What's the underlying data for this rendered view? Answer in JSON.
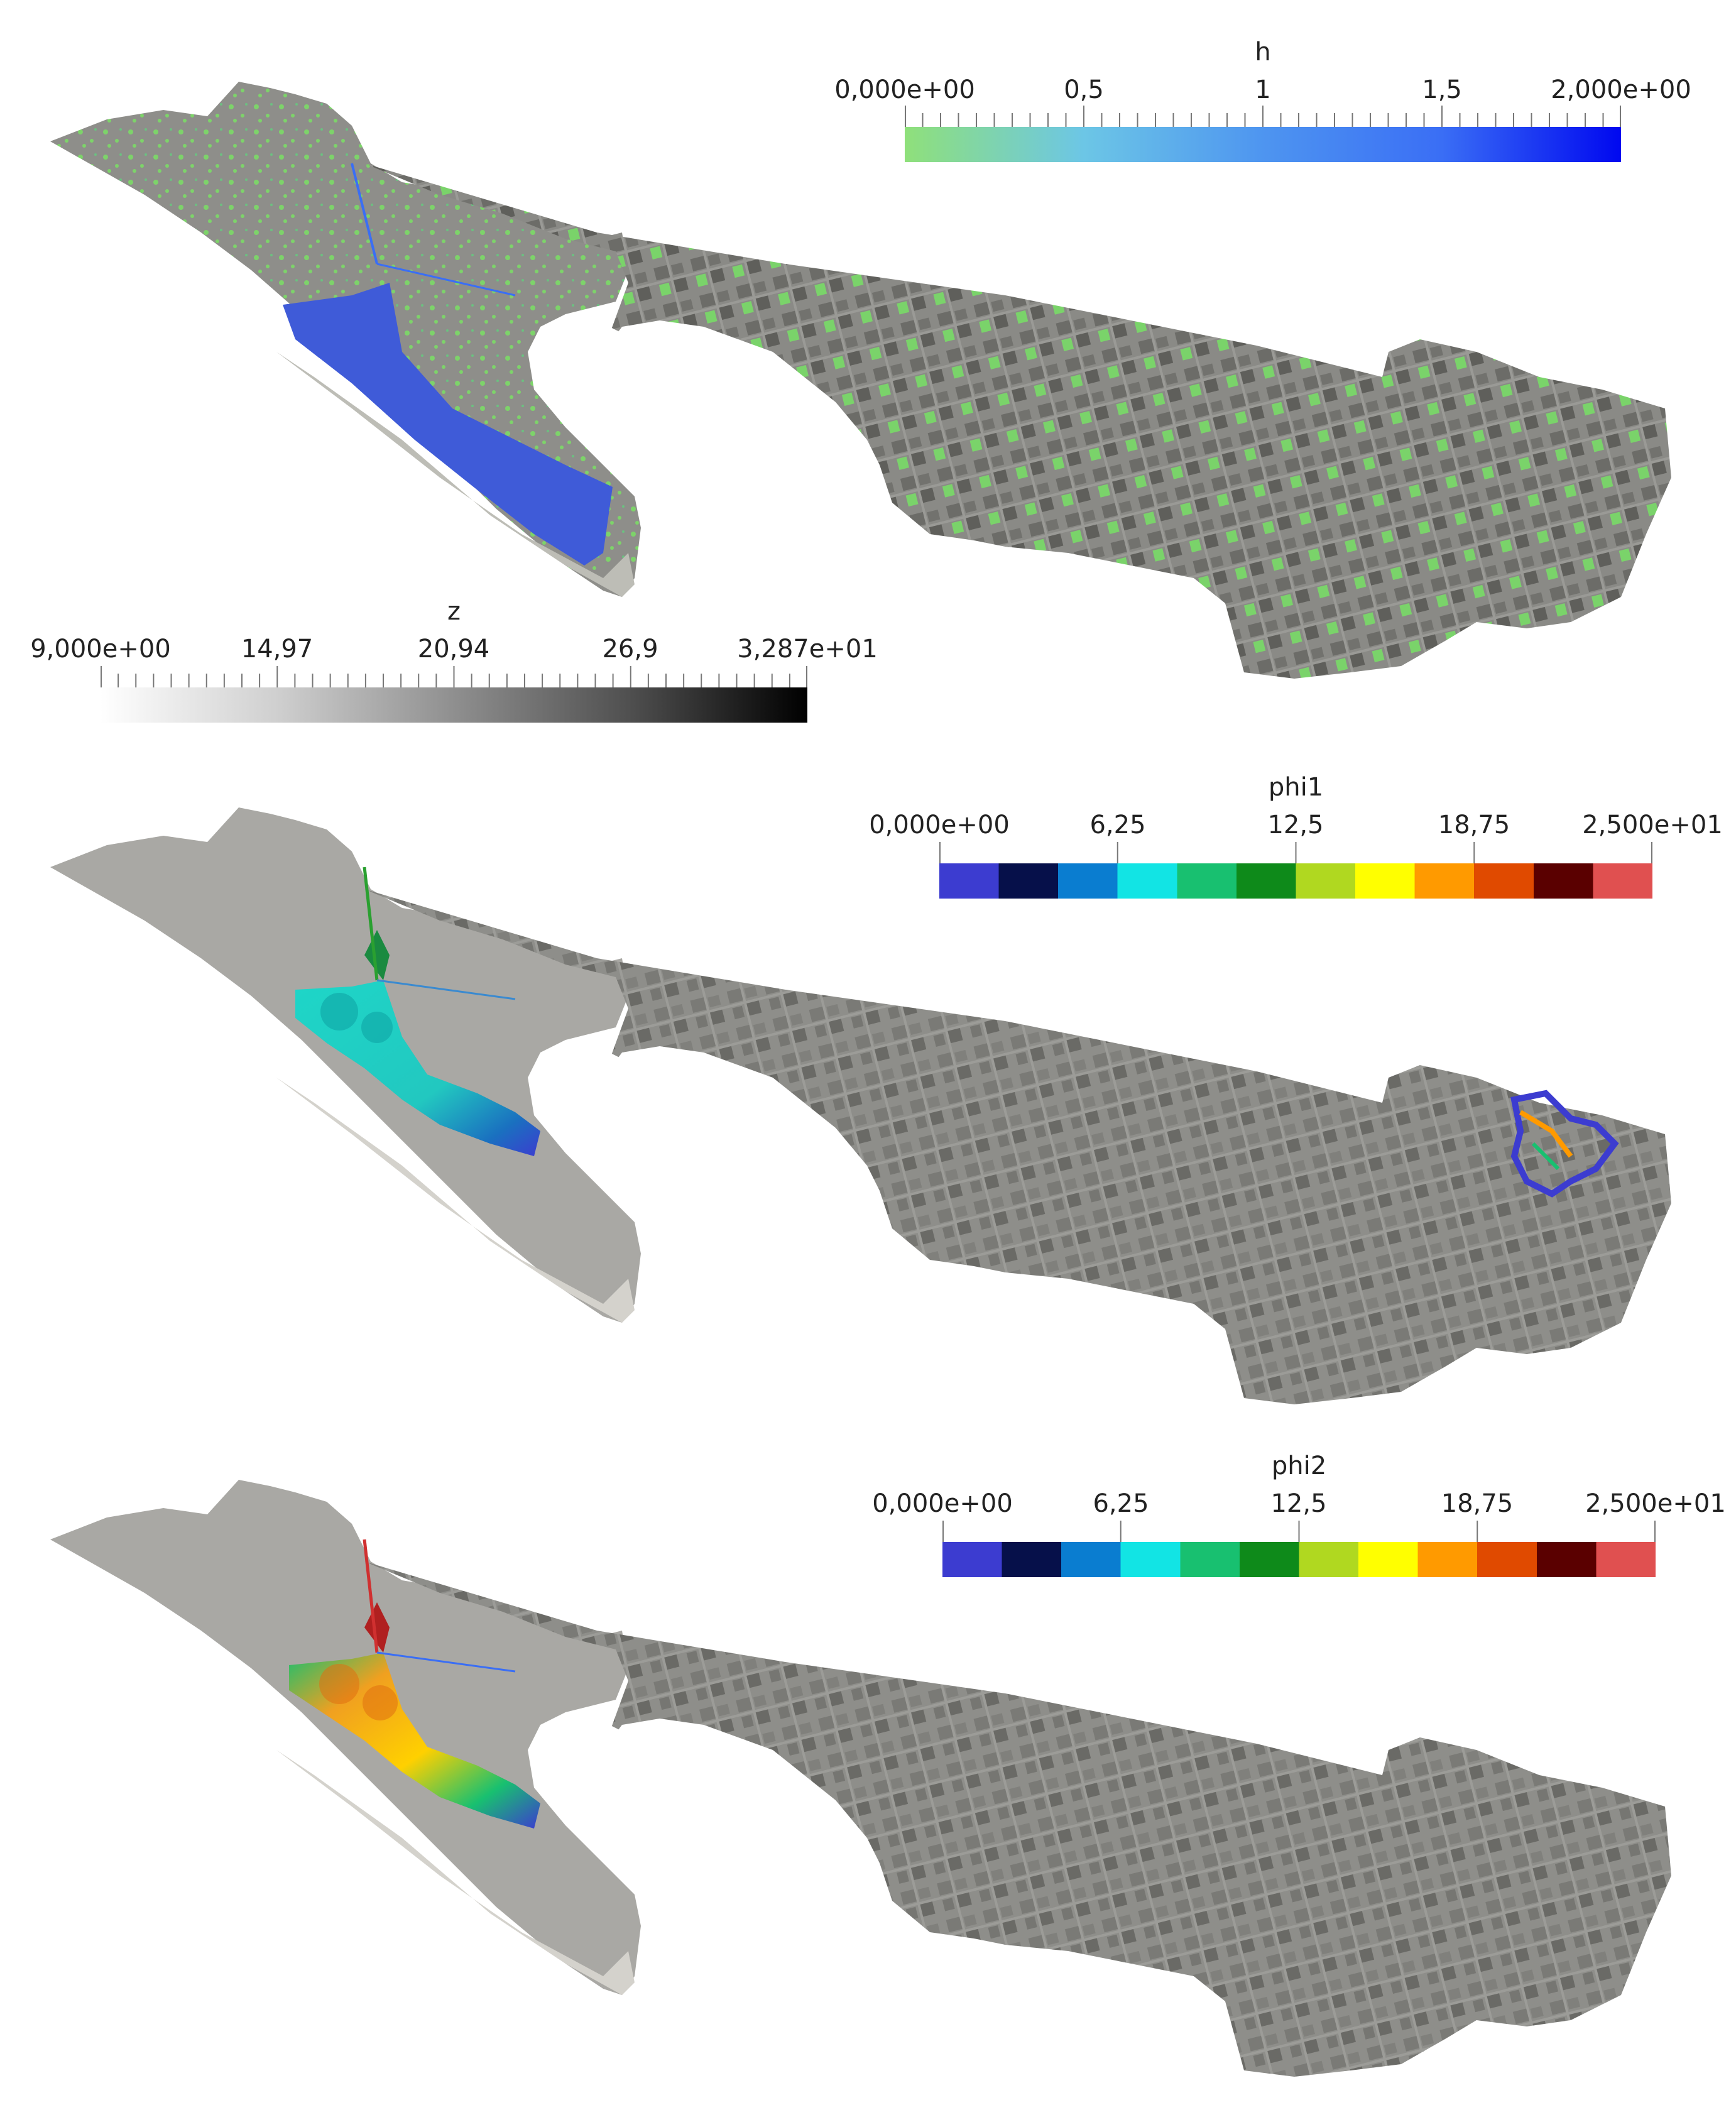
{
  "figure": {
    "panels": [
      {
        "id": "depth",
        "legends": [
          {
            "id": "h",
            "title": "h",
            "tick_labels": [
              "0,000e+00",
              "0,5",
              "1",
              "1,5",
              "2,000e+00"
            ],
            "colormap": [
              "#8fe07a",
              "#6cc6e6",
              "#4e95f0",
              "#3a6ef5",
              "#0008f0"
            ]
          },
          {
            "id": "z",
            "title": "z",
            "tick_labels": [
              "9,000e+00",
              "14,97",
              "20,94",
              "26,9",
              "3,287e+01"
            ],
            "colormap": [
              "#ffffff",
              "#cfcfcf",
              "#8f8f8f",
              "#4f4f4f",
              "#000000"
            ]
          }
        ],
        "overlay_colors": {
          "lake": "#3f5bd8",
          "flood_green": "#7dd36a",
          "terrain": "#8e8e8a"
        }
      },
      {
        "id": "phi1",
        "legends": [
          {
            "id": "phi1",
            "title": "phi1",
            "tick_labels": [
              "0,000e+00",
              "6,25",
              "12,5",
              "18,75",
              "2,500e+01"
            ],
            "colormap": [
              "#3c3cd0",
              "#06104a",
              "#0a7dd0",
              "#12e4e4",
              "#18c070",
              "#0e8a1a",
              "#b0d820",
              "#ffff00",
              "#ff9a00",
              "#e04a00",
              "#5a0000",
              "#e05050"
            ]
          }
        ],
        "overlay_colors": {
          "plume": "#1ed6c8",
          "terrain": "#8e8e8a"
        }
      },
      {
        "id": "phi2",
        "legends": [
          {
            "id": "phi2",
            "title": "phi2",
            "tick_labels": [
              "0,000e+00",
              "6,25",
              "12,5",
              "18,75",
              "2,500e+01"
            ],
            "colormap": [
              "#3c3cd0",
              "#06104a",
              "#0a7dd0",
              "#12e4e4",
              "#18c070",
              "#0e8a1a",
              "#b0d820",
              "#ffff00",
              "#ff9a00",
              "#e04a00",
              "#5a0000",
              "#e05050"
            ]
          }
        ],
        "overlay_colors": {
          "plume": "#f0a020",
          "terrain": "#8e8e8a"
        }
      }
    ]
  }
}
